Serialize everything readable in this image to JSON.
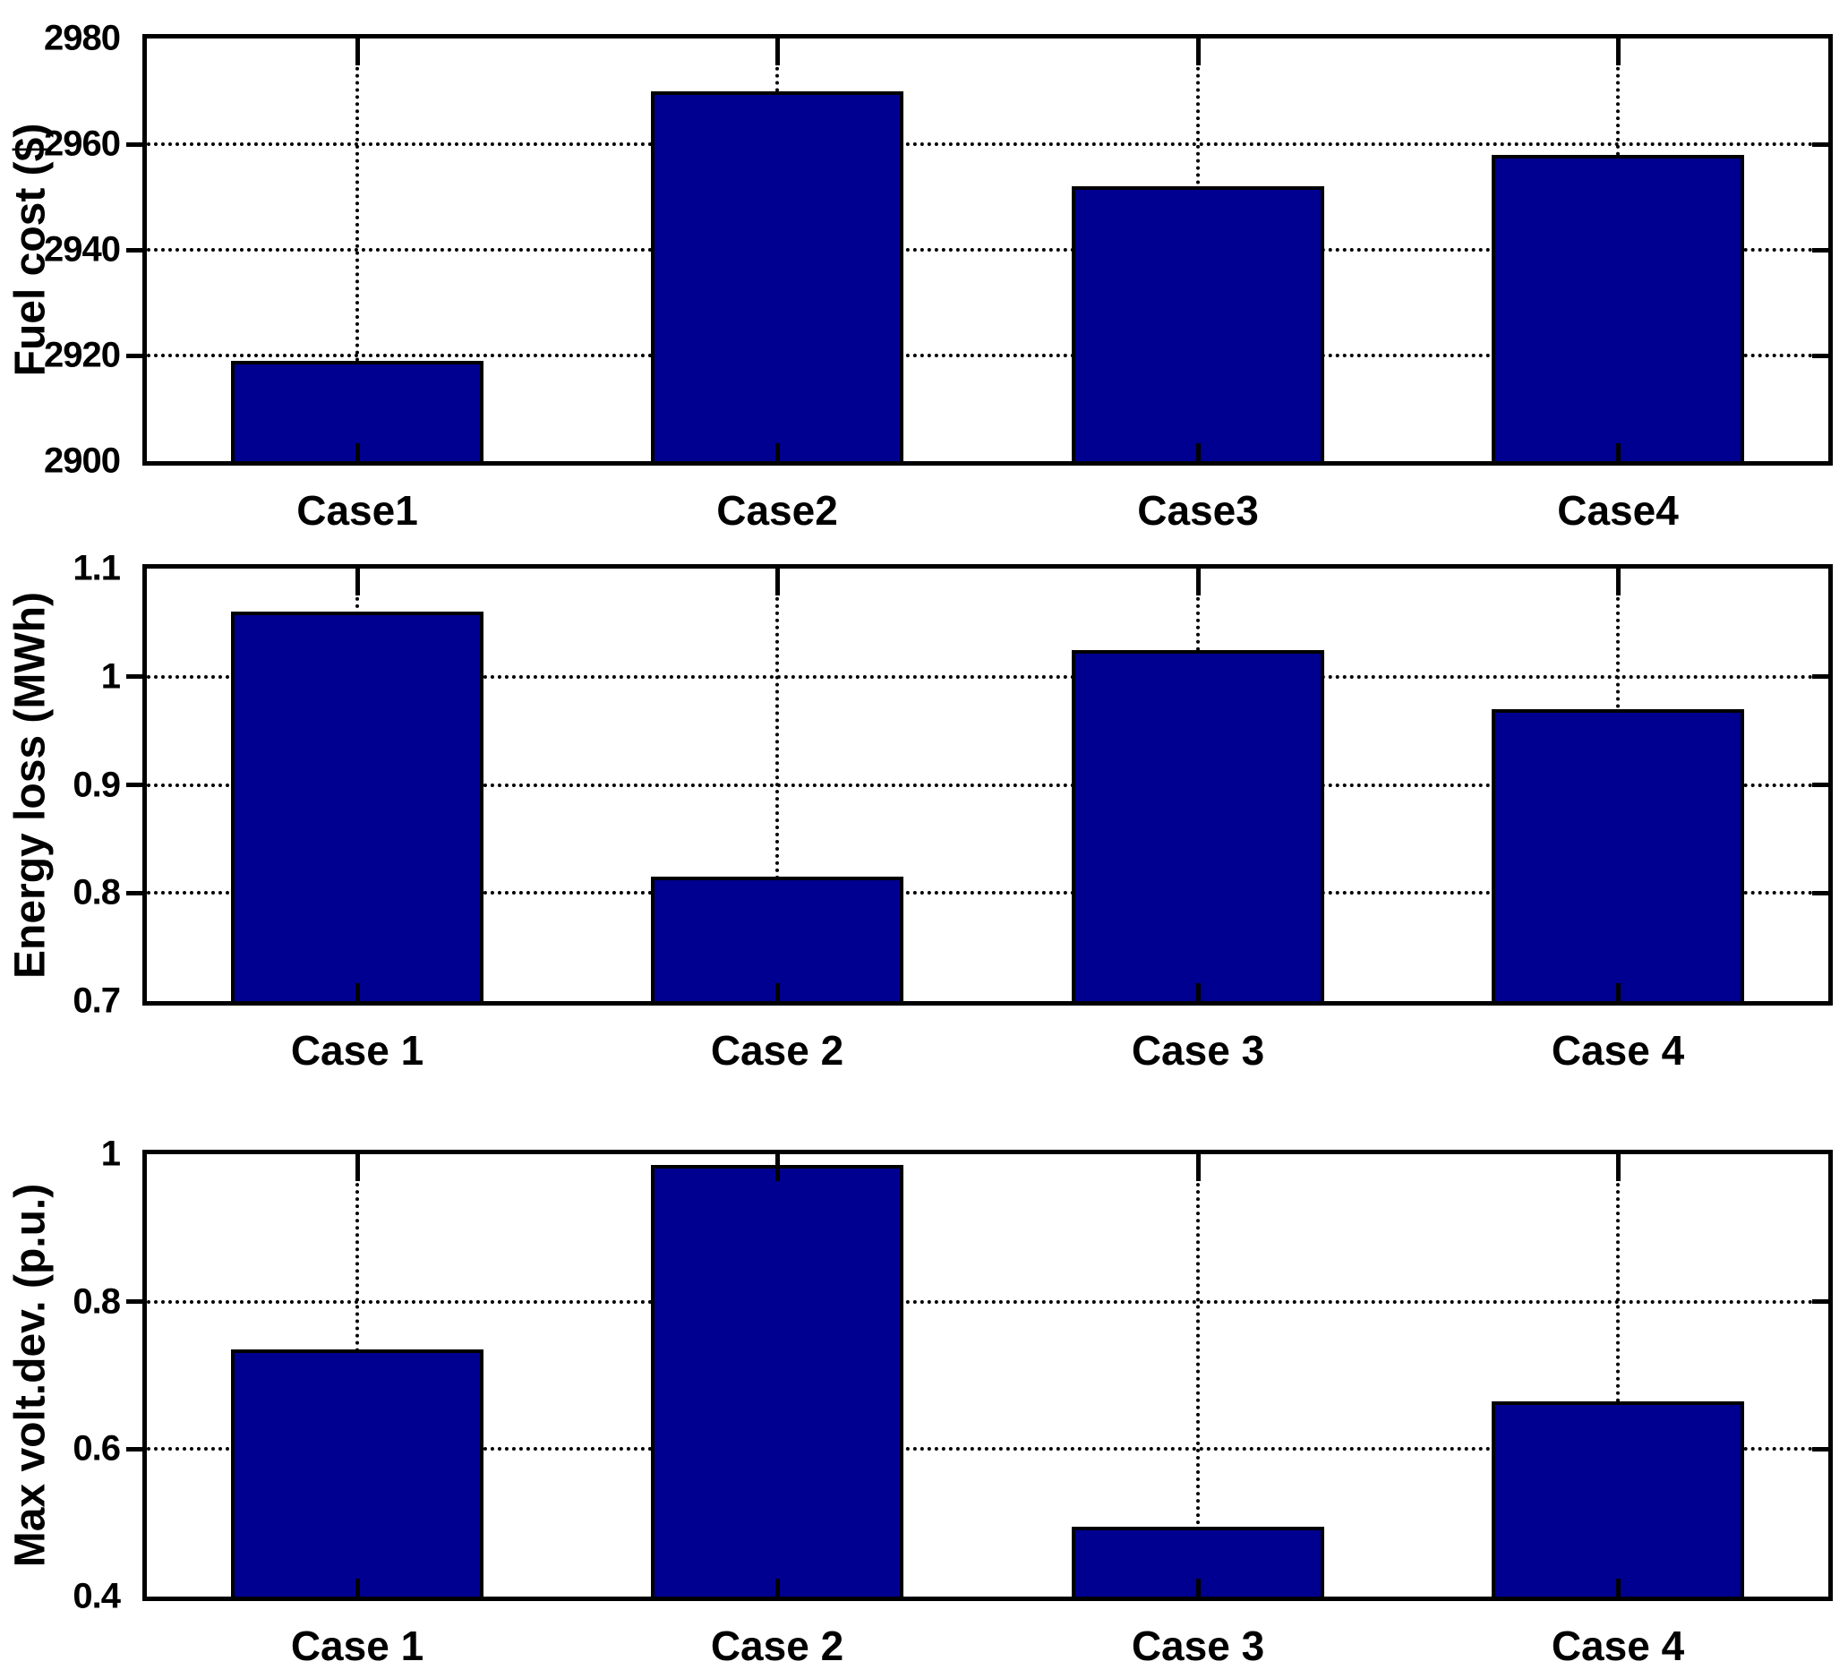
{
  "styles": {
    "bar_color": "#000090",
    "axis_color": "#000000",
    "background": "#ffffff"
  },
  "chart_data": [
    {
      "type": "bar",
      "title": "",
      "xlabel": "",
      "ylabel": "Fuel cost ($)",
      "categories": [
        "Case1",
        "Case2",
        "Case3",
        "Case4"
      ],
      "values": [
        2919,
        2970,
        2952,
        2958
      ],
      "ylim": [
        2900,
        2980
      ],
      "yticks": [
        2900,
        2920,
        2940,
        2960,
        2980
      ],
      "ytick_labels": [
        "2900",
        "2920",
        "2940",
        "2960",
        "2980"
      ],
      "grid": true,
      "legend": false,
      "bar_color": "#000090",
      "bar_width_fraction": 0.6
    },
    {
      "type": "bar",
      "title": "",
      "xlabel": "",
      "ylabel": "Energy loss (MWh)",
      "categories": [
        "Case 1",
        "Case 2",
        "Case 3",
        "Case 4"
      ],
      "values": [
        1.06,
        0.815,
        1.025,
        0.97
      ],
      "ylim": [
        0.7,
        1.1
      ],
      "yticks": [
        0.7,
        0.8,
        0.9,
        1,
        1.1
      ],
      "ytick_labels": [
        "0.7",
        "0.8",
        "0.9",
        "1",
        "1.1"
      ],
      "grid": true,
      "legend": false,
      "bar_color": "#000090",
      "bar_width_fraction": 0.6
    },
    {
      "type": "bar",
      "title": "",
      "xlabel": "",
      "ylabel": "Max volt.dev. (p.u.)",
      "categories": [
        "Case 1",
        "Case 2",
        "Case 3",
        "Case 4"
      ],
      "values": [
        0.735,
        0.985,
        0.495,
        0.665
      ],
      "ylim": [
        0.4,
        1.0
      ],
      "yticks": [
        0.4,
        0.6,
        0.8,
        1
      ],
      "ytick_labels": [
        "0.4",
        "0.6",
        "0.8",
        "1"
      ],
      "grid": true,
      "legend": false,
      "bar_color": "#000090",
      "bar_width_fraction": 0.6
    }
  ]
}
